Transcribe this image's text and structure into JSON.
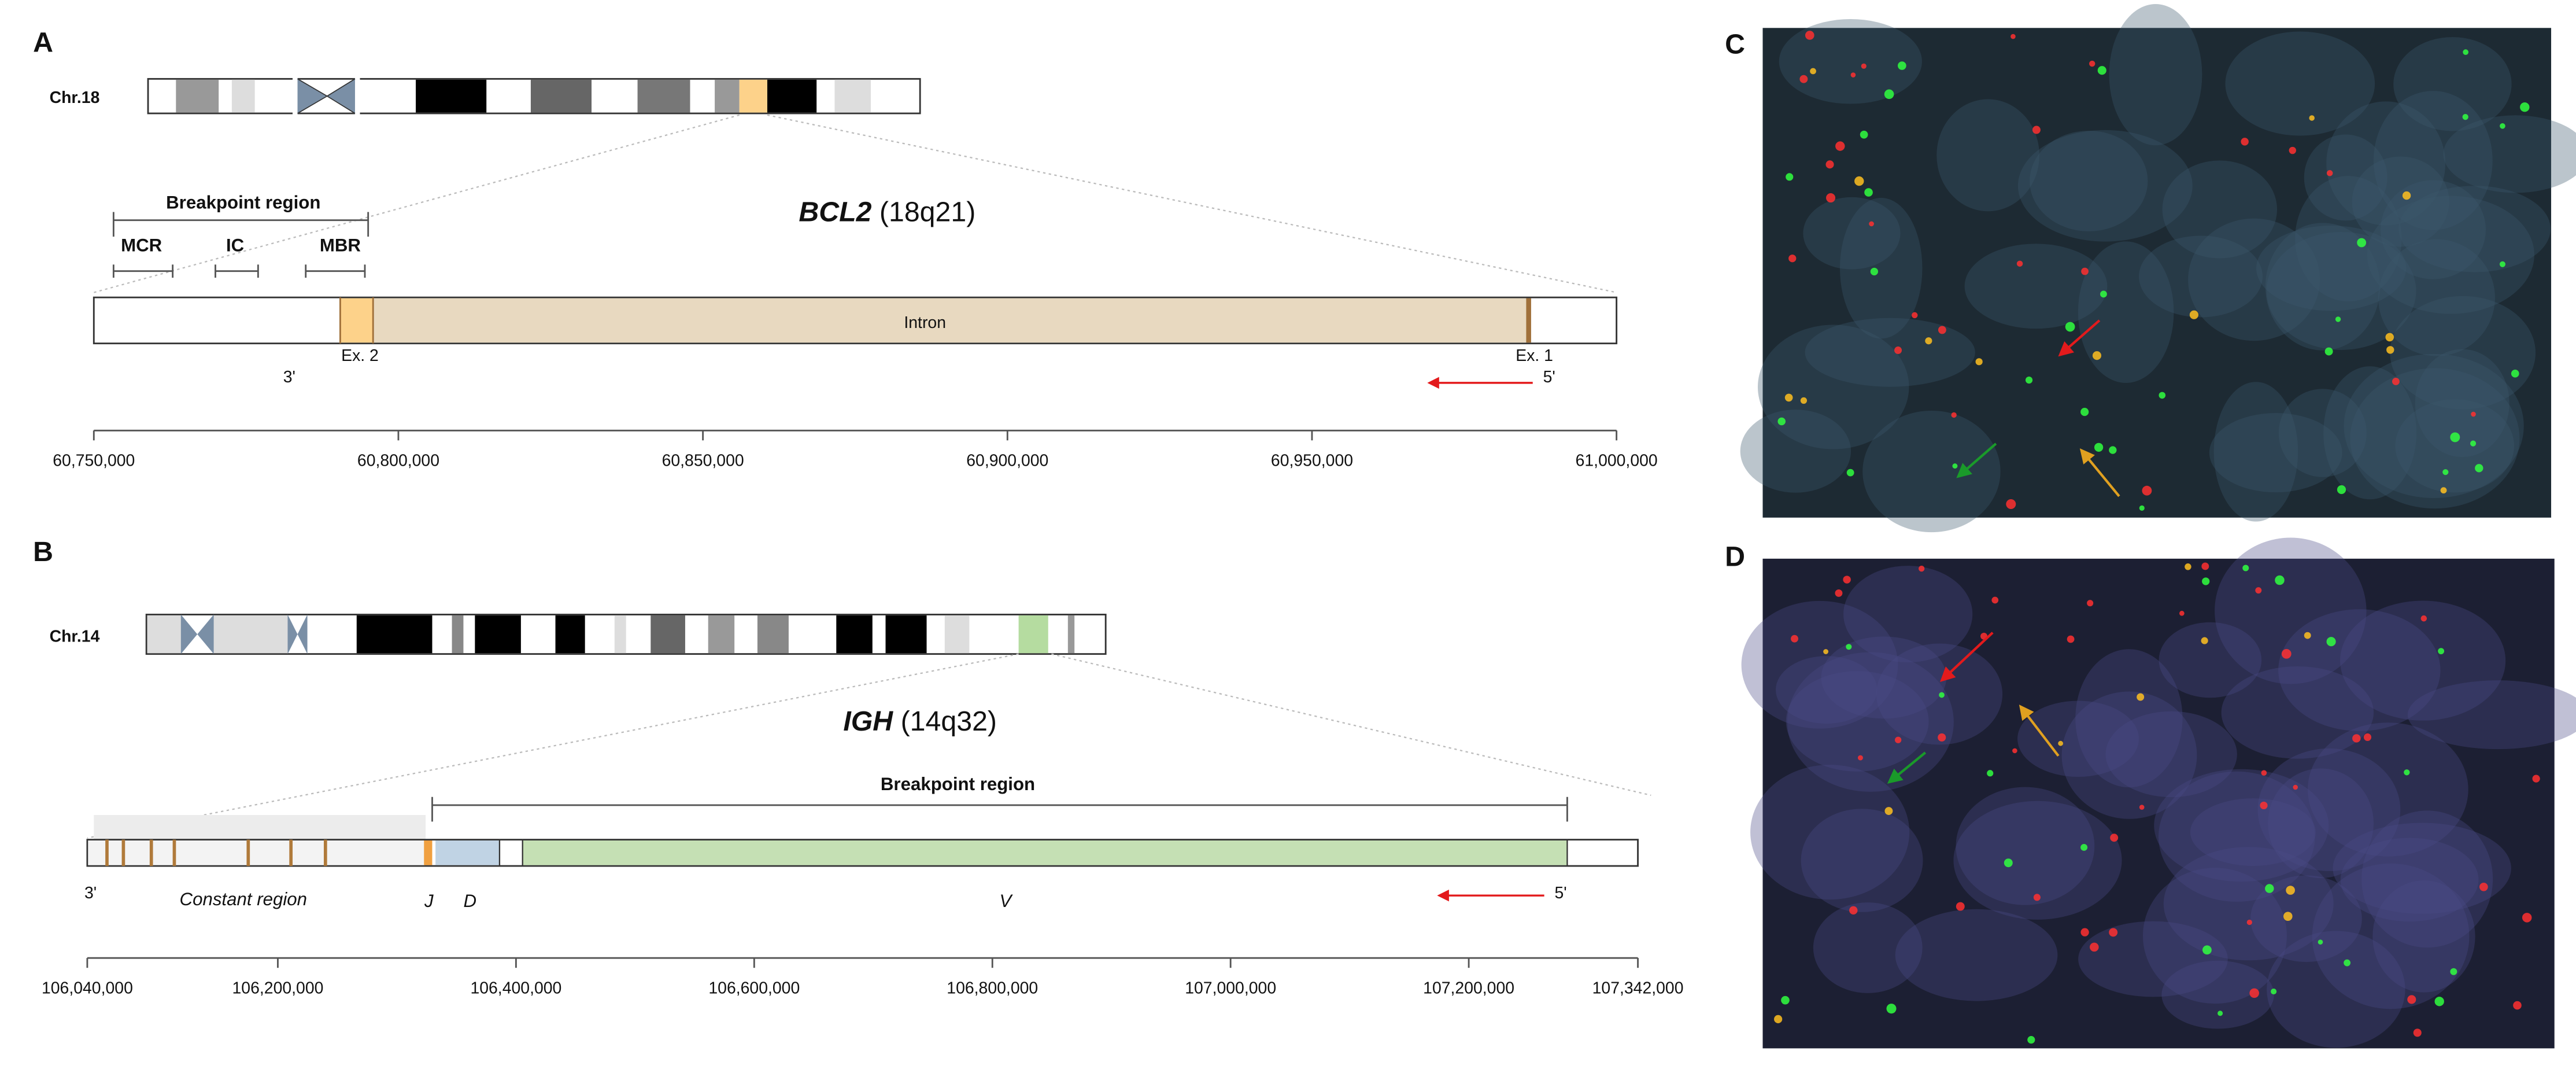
{
  "panels": {
    "a": {
      "label": "A",
      "chromosome": "Chr.18",
      "gene": "BCL2",
      "locus": "(18q21)",
      "breakpoint_region": "Breakpoint region",
      "subregions": [
        "MCR",
        "IC",
        "MBR"
      ],
      "intron": "Intron",
      "exon2": "Ex. 2",
      "exon1": "Ex. 1",
      "end3": "3'",
      "end5": "5'",
      "axis": {
        "lim": [
          60750000,
          61000000
        ],
        "ticks": [
          {
            "value": 60750000,
            "label": "60,750,000"
          },
          {
            "value": 60800000,
            "label": "60,800,000"
          },
          {
            "value": 60850000,
            "label": "60,850,000"
          },
          {
            "value": 60900000,
            "label": "60,900,000"
          },
          {
            "value": 60950000,
            "label": "60,950,000"
          },
          {
            "value": 61000000,
            "label": "61,000,000"
          }
        ]
      }
    },
    "b": {
      "label": "B",
      "chromosome": "Chr.14",
      "gene": "IGH",
      "locus": "(14q32)",
      "breakpoint_region": "Breakpoint region",
      "constant": "Constant region",
      "j": "J",
      "d": "D",
      "v": "V",
      "end3": "3'",
      "end5": "5'",
      "axis": {
        "lim": [
          106040000,
          107342000
        ],
        "ticks": [
          {
            "value": 106040000,
            "label": "106,040,000"
          },
          {
            "value": 106200000,
            "label": "106,200,000"
          },
          {
            "value": 106400000,
            "label": "106,400,000"
          },
          {
            "value": 106600000,
            "label": "106,600,000"
          },
          {
            "value": 106800000,
            "label": "106,800,000"
          },
          {
            "value": 107000000,
            "label": "107,000,000"
          },
          {
            "value": 107200000,
            "label": "107,200,000"
          },
          {
            "value": 107342000,
            "label": "107,342,000"
          }
        ]
      }
    },
    "c": {
      "label": "C"
    },
    "d": {
      "label": "D"
    }
  }
}
